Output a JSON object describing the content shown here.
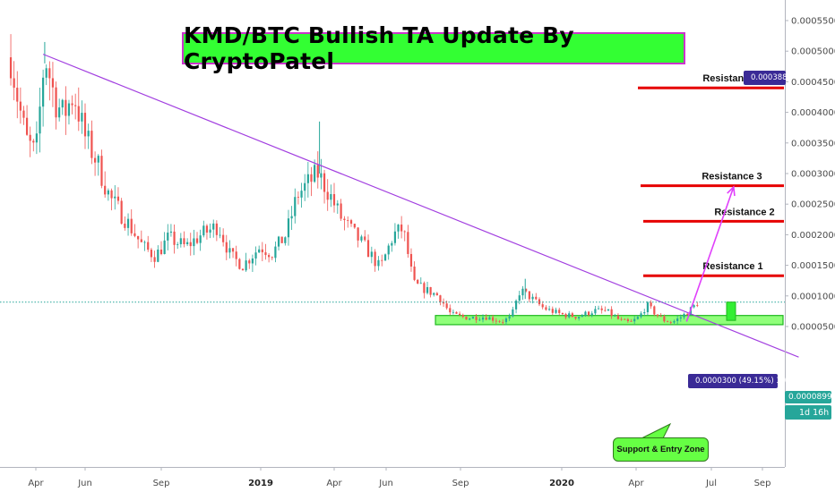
{
  "title": "KMD/BTC Bullish TA Update By CryptoPatel",
  "annotations": {
    "resistance_levels": [
      {
        "label": "Resistance 4",
        "price": 0.00044
      },
      {
        "label": "Resistance 3",
        "price": 0.00028
      },
      {
        "label": "Resistance 2",
        "price": 0.000222
      },
      {
        "label": "Resistance 1",
        "price": 0.000133
      }
    ],
    "top_price_tag": "0.0003889",
    "measure_tag": "0.0000300 (49.15%) 300",
    "support_callout": "Support & Entry Zone",
    "current_price_tag": "0.0000899",
    "countdown_tag": "1d 16h"
  },
  "colors": {
    "up_candle": "#26a69a",
    "down_candle": "#ef5350",
    "resistance_line": "#e60000",
    "trendline": "#a23fe0",
    "projection_arrow": "#e040fb",
    "support_zone_fill": "#7dff63",
    "support_zone_border": "#1fb81f",
    "title_bg": "#33ff33",
    "title_border": "#cc33cc",
    "price_tag": "#3a2a96"
  },
  "chart_data": {
    "type": "candlestick",
    "pair": "KMD/BTC",
    "y_axis": {
      "ticks": [
        "0.0005500",
        "0.0005000",
        "0.0004500",
        "0.0004000",
        "0.0003500",
        "0.0003000",
        "0.0002500",
        "0.0002000",
        "0.0001500",
        "0.0001000",
        "0.0000500"
      ],
      "range": [
        0.0,
        0.00057
      ]
    },
    "x_axis": {
      "ticks": [
        {
          "label": "Apr"
        },
        {
          "label": "Jun"
        },
        {
          "label": "Sep"
        },
        {
          "label": "2019",
          "bold": true
        },
        {
          "label": "Apr"
        },
        {
          "label": "Jun"
        },
        {
          "label": "Sep"
        },
        {
          "label": "2020",
          "bold": true
        },
        {
          "label": "Apr"
        },
        {
          "label": "Jul"
        },
        {
          "label": "Sep"
        }
      ]
    },
    "price_path": [
      [
        "2018-03-01",
        0.00049
      ],
      [
        "2018-03-10",
        0.00042
      ],
      [
        "2018-03-20",
        0.000355
      ],
      [
        "2018-04-01",
        0.00033
      ],
      [
        "2018-04-12",
        0.000495
      ],
      [
        "2018-04-25",
        0.00042
      ],
      [
        "2018-05-05",
        0.000395
      ],
      [
        "2018-05-18",
        0.00043
      ],
      [
        "2018-06-01",
        0.00036
      ],
      [
        "2018-06-15",
        0.00032
      ],
      [
        "2018-07-01",
        0.00026
      ],
      [
        "2018-07-20",
        0.000225
      ],
      [
        "2018-08-10",
        0.00018
      ],
      [
        "2018-08-25",
        0.000165
      ],
      [
        "2018-09-10",
        0.000195
      ],
      [
        "2018-10-01",
        0.00018
      ],
      [
        "2018-10-20",
        0.0002
      ],
      [
        "2018-11-10",
        0.000215
      ],
      [
        "2018-11-25",
        0.000165
      ],
      [
        "2018-12-10",
        0.00015
      ],
      [
        "2018-12-31",
        0.00018
      ],
      [
        "2019-01-15",
        0.00017
      ],
      [
        "2019-02-01",
        0.0002
      ],
      [
        "2019-02-15",
        0.000265
      ],
      [
        "2019-03-01",
        0.000285
      ],
      [
        "2019-03-12",
        0.0003
      ],
      [
        "2019-03-25",
        0.00027
      ],
      [
        "2019-04-08",
        0.00023
      ],
      [
        "2019-04-25",
        0.0002
      ],
      [
        "2019-05-10",
        0.000175
      ],
      [
        "2019-05-25",
        0.000145
      ],
      [
        "2019-06-10",
        0.0002
      ],
      [
        "2019-06-22",
        0.00021
      ],
      [
        "2019-07-05",
        0.00012
      ],
      [
        "2019-07-20",
        0.00011
      ],
      [
        "2019-08-05",
        0.0001
      ],
      [
        "2019-08-20",
        7e-05
      ],
      [
        "2019-09-10",
        6.4e-05
      ],
      [
        "2019-10-01",
        6.6e-05
      ],
      [
        "2019-10-20",
        5.8e-05
      ],
      [
        "2019-11-01",
        6.5e-05
      ],
      [
        "2019-11-12",
        0.00011
      ],
      [
        "2019-11-22",
        0.0001
      ],
      [
        "2019-12-10",
        8e-05
      ],
      [
        "2019-12-31",
        7e-05
      ],
      [
        "2020-01-20",
        6.6e-05
      ],
      [
        "2020-02-10",
        7.6e-05
      ],
      [
        "2020-02-25",
        7.5e-05
      ],
      [
        "2020-03-12",
        6e-05
      ],
      [
        "2020-03-25",
        5.6e-05
      ],
      [
        "2020-04-05",
        6.6e-05
      ],
      [
        "2020-04-14",
        8.5e-05
      ],
      [
        "2020-04-25",
        7e-05
      ],
      [
        "2020-05-05",
        6e-05
      ],
      [
        "2020-05-15",
        5.7e-05
      ],
      [
        "2020-05-28",
        6.8e-05
      ],
      [
        "2020-06-08",
        8e-05
      ],
      [
        "2020-06-15",
        9e-05
      ]
    ],
    "trendline": [
      [
        "2018-04-10",
        0.000495
      ],
      [
        "2020-10-15",
        0.0
      ]
    ],
    "support_zone": {
      "from": "2019-08-01",
      "to": "2020-10-31",
      "low": 5.3e-05,
      "high": 6.8e-05
    },
    "projection": [
      [
        "2020-06-01",
        5.8e-05
      ],
      [
        "2020-07-28",
        0.000278
      ]
    ],
    "current_price": 8.99e-05
  }
}
